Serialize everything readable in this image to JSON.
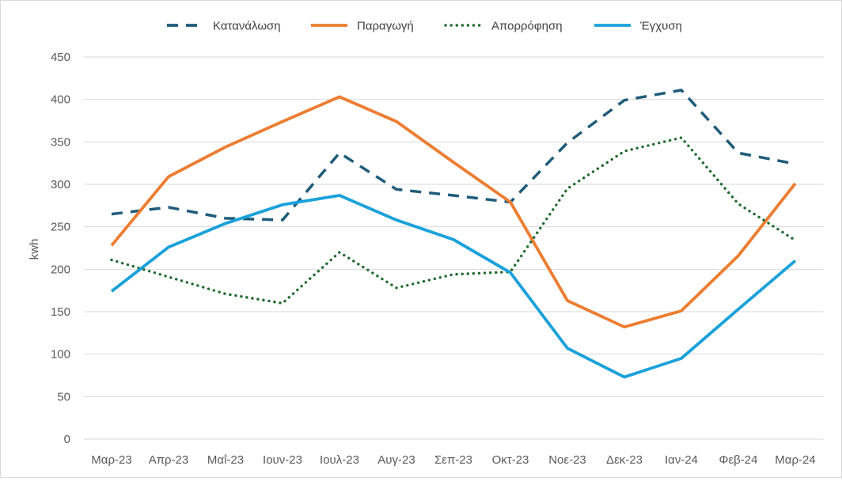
{
  "chart_data": {
    "type": "line",
    "title": "",
    "xlabel": "",
    "ylabel": "kwh",
    "ylim": [
      0,
      450
    ],
    "ytick_step": 50,
    "grid": "horizontal",
    "legend_position": "top",
    "categories": [
      "Μαρ-23",
      "Απρ-23",
      "Μαΐ-23",
      "Ιουν-23",
      "Ιουλ-23",
      "Αυγ-23",
      "Σεπ-23",
      "Οκτ-23",
      "Νοε-23",
      "Δεκ-23",
      "Ιαν-24",
      "Φεβ-24",
      "Μαρ-24"
    ],
    "series": [
      {
        "name": "Κατανάλωση",
        "color": "#1f5c7a",
        "dash": "dashed",
        "values": [
          265,
          273,
          260,
          258,
          337,
          294,
          287,
          279,
          349,
          399,
          411,
          337,
          324
        ]
      },
      {
        "name": "Παραγωγή",
        "color": "#ed7d31",
        "dash": "solid",
        "values": [
          228,
          309,
          344,
          374,
          403,
          374,
          326,
          279,
          163,
          132,
          151,
          216,
          301
        ]
      },
      {
        "name": "Απορρόφηση",
        "color": "#1e6b2e",
        "dash": "dotted",
        "values": [
          211,
          191,
          171,
          160,
          220,
          178,
          194,
          197,
          295,
          339,
          355,
          277,
          234
        ]
      },
      {
        "name": "Έγχυση",
        "color": "#1aa1db",
        "dash": "solid",
        "values": [
          174,
          226,
          254,
          276,
          287,
          258,
          235,
          196,
          107,
          73,
          95,
          153,
          210
        ]
      }
    ]
  }
}
